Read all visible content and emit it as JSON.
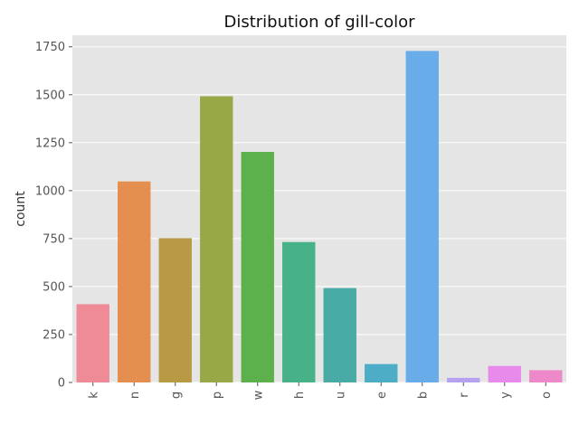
{
  "chart_data": {
    "type": "bar",
    "title": "Distribution of gill-color",
    "xlabel": "",
    "ylabel": "count",
    "categories": [
      "k",
      "n",
      "g",
      "p",
      "w",
      "h",
      "u",
      "e",
      "b",
      "r",
      "y",
      "o"
    ],
    "values": [
      408,
      1048,
      752,
      1492,
      1202,
      732,
      492,
      96,
      1728,
      24,
      86,
      64
    ],
    "colors": [
      "#ee8b97",
      "#e48f4f",
      "#b89a45",
      "#99a846",
      "#5db14c",
      "#47b187",
      "#49aba6",
      "#4dacc6",
      "#68acea",
      "#b6a3ef",
      "#e88aec",
      "#ed88c9"
    ],
    "ylim": [
      0,
      1810
    ],
    "yticks": [
      0,
      250,
      500,
      750,
      1000,
      1250,
      1500,
      1750
    ],
    "ytick_labels": [
      "0",
      "250",
      "500",
      "750",
      "1000",
      "1250",
      "1500",
      "1750"
    ],
    "grid": true,
    "background": "#e5e5e5",
    "grid_color": "#ffffff"
  }
}
